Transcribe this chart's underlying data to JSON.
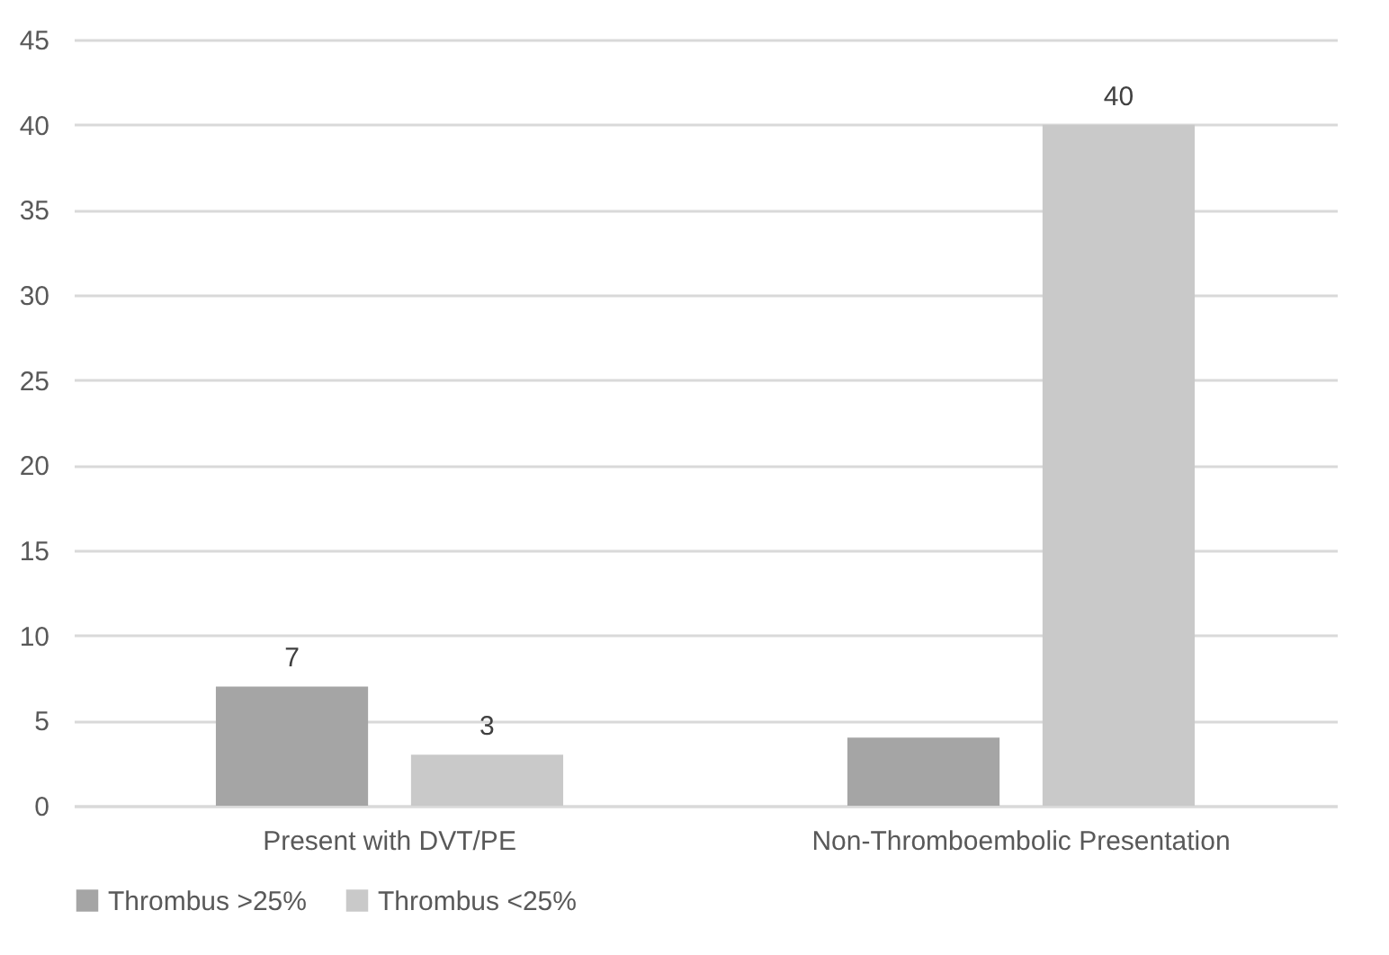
{
  "chart_data": {
    "type": "bar",
    "categories": [
      "Present with DVT/PE",
      "Non-Thromboembolic Presentation"
    ],
    "series": [
      {
        "name": "Thrombus >25%",
        "color": "#a5a5a5",
        "values": [
          7,
          4
        ],
        "value_labels": [
          "7",
          null
        ]
      },
      {
        "name": "Thrombus <25%",
        "color": "#c9c9c9",
        "values": [
          3,
          40
        ],
        "value_labels": [
          "3",
          "40"
        ]
      }
    ],
    "ylim": [
      0,
      45
    ],
    "yticks": [
      0,
      5,
      10,
      15,
      20,
      25,
      30,
      35,
      40,
      45
    ],
    "grid": "y",
    "legend": "bottom"
  }
}
